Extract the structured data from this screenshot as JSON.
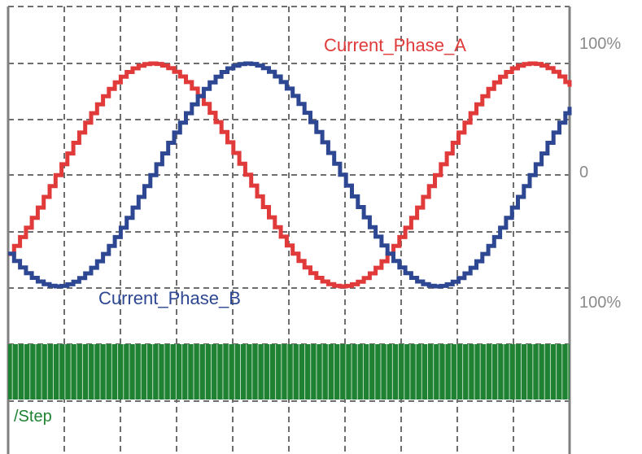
{
  "chart_data": {
    "type": "line",
    "title": "",
    "xlabel": "",
    "ylabel": "",
    "ylim": [
      -100,
      100
    ],
    "ytick_labels": [
      {
        "value": 100,
        "label": "100%"
      },
      {
        "value": 0,
        "label": "0"
      },
      {
        "value": -100,
        "label": "100%"
      }
    ],
    "grid": true,
    "x_divisions": 10,
    "y_divisions": 8,
    "step_resolution_per_cycle": 64,
    "cycles_shown": 1.48,
    "series": [
      {
        "name": "Current_Phase_A",
        "color": "#e03a3a",
        "waveform": "stepped-sine",
        "amplitude": 100,
        "phase_deg": 0
      },
      {
        "name": "Current_Phase_B",
        "color": "#2e4793",
        "waveform": "stepped-sine",
        "amplitude": 100,
        "phase_deg": -90
      }
    ],
    "digital_signal": {
      "name": "/Step",
      "color": "#1f8232",
      "pulses": 96
    }
  }
}
